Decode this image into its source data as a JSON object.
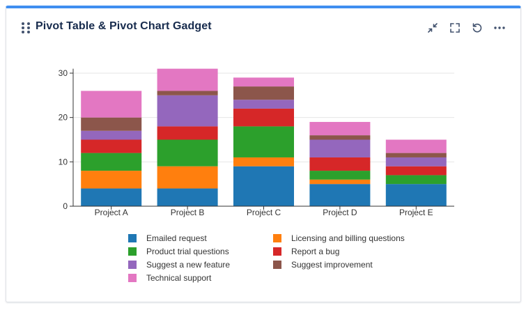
{
  "gadget": {
    "title": "Pivot Table & Pivot Chart Gadget",
    "icons": {
      "drag": "drag-handle-icon",
      "minimize": "minimize-icon",
      "maximize": "maximize-icon",
      "refresh": "refresh-icon",
      "more": "more-icon"
    }
  },
  "chart_data": {
    "type": "bar",
    "stacked": true,
    "title": "",
    "xlabel": "",
    "ylabel": "",
    "ylim": [
      0,
      31
    ],
    "yticks": [
      0,
      10,
      20,
      30
    ],
    "grid": true,
    "legend_position": "bottom",
    "categories": [
      "Project A",
      "Project B",
      "Project C",
      "Project D",
      "Project E"
    ],
    "series": [
      {
        "name": "Emailed request",
        "color": "#1f77b4",
        "values": [
          4,
          4,
          9,
          5,
          5
        ]
      },
      {
        "name": "Licensing and billing questions",
        "color": "#ff7f0e",
        "values": [
          4,
          5,
          2,
          1,
          0
        ]
      },
      {
        "name": "Product trial questions",
        "color": "#2ca02c",
        "values": [
          4,
          6,
          7,
          2,
          2
        ]
      },
      {
        "name": "Report a bug",
        "color": "#d62728",
        "values": [
          3,
          3,
          4,
          3,
          2
        ]
      },
      {
        "name": "Suggest a new feature",
        "color": "#9467bd",
        "values": [
          2,
          7,
          2,
          4,
          2
        ]
      },
      {
        "name": "Suggest improvement",
        "color": "#8c564b",
        "values": [
          3,
          1,
          3,
          1,
          1
        ]
      },
      {
        "name": "Technical support",
        "color": "#e377c2",
        "values": [
          6,
          5,
          2,
          3,
          3
        ]
      }
    ]
  }
}
